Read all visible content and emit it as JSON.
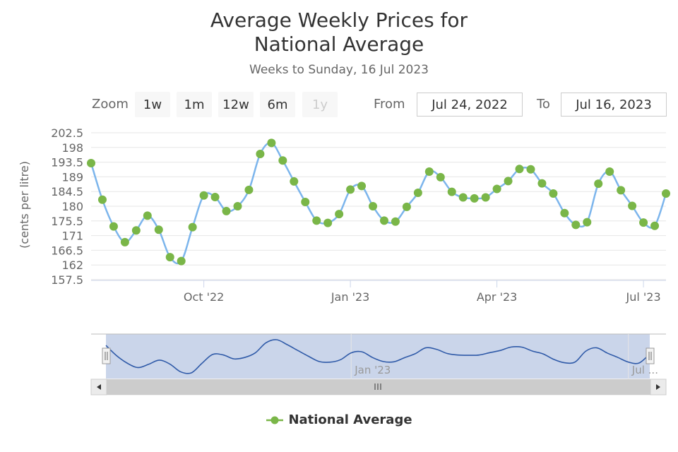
{
  "header": {
    "title_line1": "Average Weekly Prices for",
    "title_line2": "National Average",
    "subtitle": "Weeks to Sunday, 16 Jul 2023"
  },
  "range_selector": {
    "zoom_label": "Zoom",
    "buttons": [
      "1w",
      "1m",
      "12w",
      "6m",
      "1y"
    ],
    "disabled_button": "1y",
    "from_label": "From",
    "from_value": "Jul 24, 2022",
    "to_label": "To",
    "to_value": "Jul 16, 2023"
  },
  "legend": {
    "series_name": "National Average"
  },
  "colors": {
    "line": "#7cb5ec",
    "marker": "#7ab648",
    "grid": "#e6e6e6",
    "navigator_mask": "#cad5ea",
    "navigator_line": "#2f5aa8",
    "scrollbar": "#cccccc"
  },
  "chart_data": {
    "type": "line",
    "title": "Average Weekly Prices for National Average",
    "subtitle": "Weeks to Sunday, 16 Jul 2023",
    "ylabel": "(cents per litre)",
    "xlabel": "",
    "ylim": [
      157.5,
      202.5
    ],
    "yticks": [
      "157.5",
      "162",
      "166.5",
      "171",
      "175.5",
      "180",
      "184.5",
      "189",
      "193.5",
      "198",
      "202.5"
    ],
    "xticks": [
      {
        "date": "2022-10-02",
        "label": "Oct '22"
      },
      {
        "date": "2023-01-01",
        "label": "Jan '23"
      },
      {
        "date": "2023-04-02",
        "label": "Apr '23"
      },
      {
        "date": "2023-07-02",
        "label": "Jul '23"
      }
    ],
    "navigator_labels": [
      {
        "date": "2023-01-01",
        "label": "Jan '23"
      },
      {
        "date": "2023-07-02",
        "label": "Jul ..."
      }
    ],
    "grid": true,
    "legend_position": "bottom-center",
    "series": [
      {
        "name": "National Average",
        "x": [
          "2022-07-24",
          "2022-07-31",
          "2022-08-07",
          "2022-08-14",
          "2022-08-21",
          "2022-08-28",
          "2022-09-04",
          "2022-09-11",
          "2022-09-18",
          "2022-09-25",
          "2022-10-02",
          "2022-10-09",
          "2022-10-16",
          "2022-10-23",
          "2022-10-30",
          "2022-11-06",
          "2022-11-13",
          "2022-11-20",
          "2022-11-27",
          "2022-12-04",
          "2022-12-11",
          "2022-12-18",
          "2022-12-25",
          "2023-01-01",
          "2023-01-08",
          "2023-01-15",
          "2023-01-22",
          "2023-01-29",
          "2023-02-05",
          "2023-02-12",
          "2023-02-19",
          "2023-02-26",
          "2023-03-05",
          "2023-03-12",
          "2023-03-19",
          "2023-03-26",
          "2023-04-02",
          "2023-04-09",
          "2023-04-16",
          "2023-04-23",
          "2023-04-30",
          "2023-05-07",
          "2023-05-14",
          "2023-05-21",
          "2023-05-28",
          "2023-06-04",
          "2023-06-11",
          "2023-06-18",
          "2023-06-25",
          "2023-07-02",
          "2023-07-09",
          "2023-07-16"
        ],
        "y": [
          193.2,
          182.0,
          173.8,
          169.0,
          172.6,
          177.1,
          172.8,
          164.4,
          163.2,
          173.6,
          183.3,
          182.8,
          178.5,
          180.0,
          185.0,
          196.0,
          199.4,
          194.0,
          187.6,
          181.3,
          175.6,
          174.9,
          177.6,
          185.1,
          186.2,
          180.0,
          175.6,
          175.3,
          179.8,
          184.1,
          190.6,
          188.9,
          184.4,
          182.7,
          182.4,
          182.7,
          185.3,
          187.7,
          191.4,
          191.3,
          187.0,
          183.9,
          177.9,
          174.3,
          175.1,
          186.9,
          190.6,
          184.9,
          180.1,
          175.0,
          174.0,
          183.9
        ]
      }
    ]
  }
}
